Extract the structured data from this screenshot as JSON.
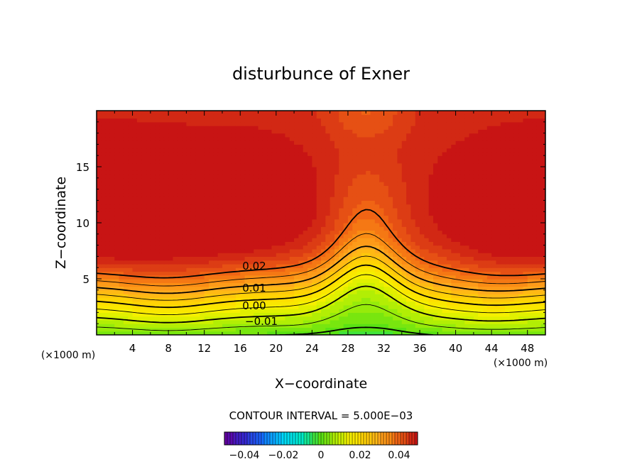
{
  "chart_data": {
    "type": "heatmap",
    "title": "disturbunce of Exner",
    "xlabel": "X−coordinate",
    "ylabel": "Z−coordinate",
    "x_unit": "(×1000 m)",
    "z_unit": "(×1000 m)",
    "xlim": [
      0,
      50
    ],
    "ylim": [
      0,
      20
    ],
    "x_ticks": [
      "4",
      "8",
      "12",
      "16",
      "20",
      "24",
      "28",
      "32",
      "36",
      "40",
      "44",
      "48"
    ],
    "y_ticks": [
      "5",
      "10",
      "15"
    ],
    "contour_interval_text": "CONTOUR INTERVAL = 5.000E−03",
    "contour_labels": [
      "0.02",
      "0.01",
      "0.00",
      "−0.01"
    ],
    "colorbar": {
      "range": [
        -0.05,
        0.05
      ],
      "tick_labels": [
        "−0.04",
        "−0.02",
        "0",
        "0.02",
        "0.04"
      ]
    },
    "field_summary": {
      "surface_min": -0.02,
      "upper_max": 0.035,
      "upper_center_min": 0.025,
      "lows_x": [
        0,
        50
      ],
      "high_column_x": 30
    }
  }
}
